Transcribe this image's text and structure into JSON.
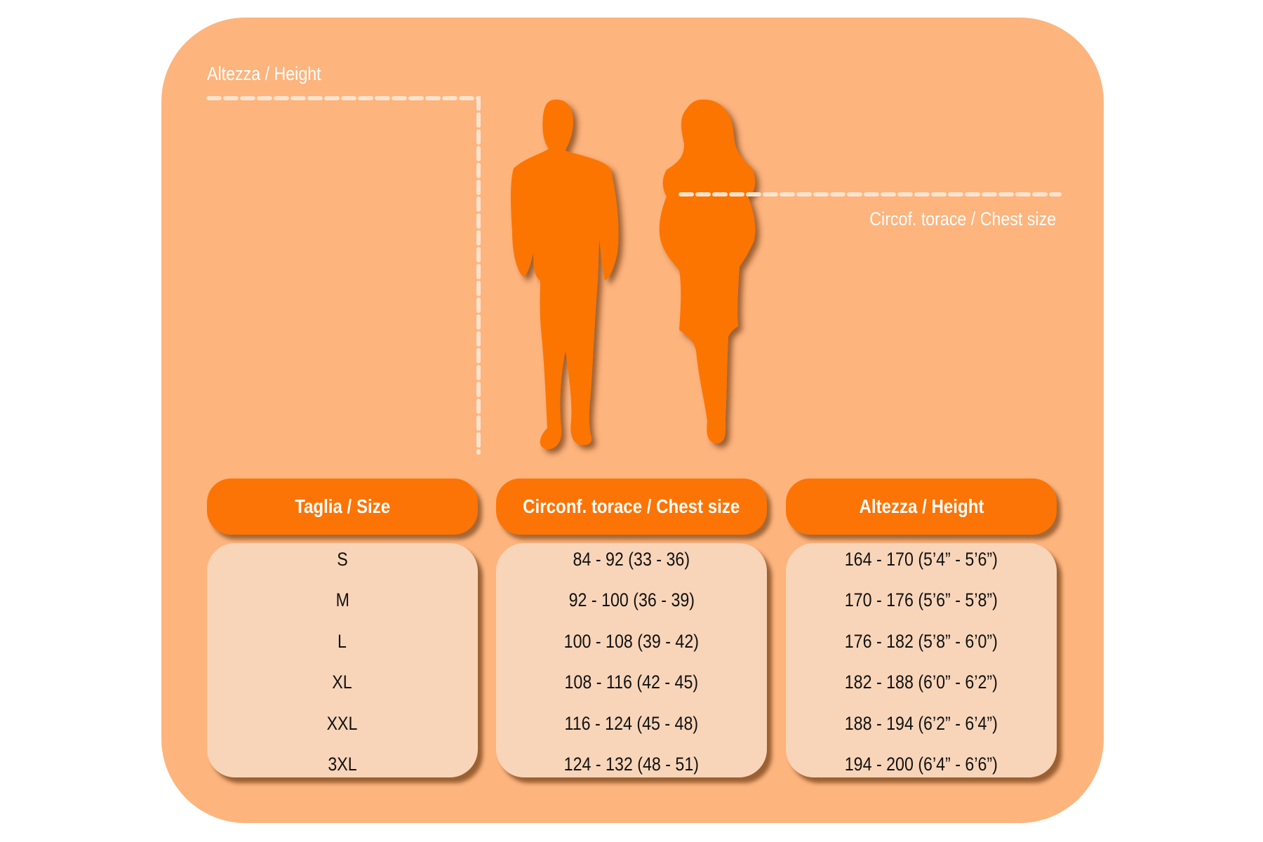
{
  "diagram": {
    "height_label": "Altezza / Height",
    "chest_label": "Circof. torace / Chest size",
    "figures": [
      "man-silhouette",
      "woman-silhouette"
    ],
    "colors": {
      "background": "#fdb47d",
      "accent": "#fb7405",
      "cell": "#f8d5b9",
      "guide": "#fbe3cf"
    }
  },
  "table": {
    "headers": [
      "Taglia / Size",
      "Circonf. torace / Chest size",
      "Altezza / Height"
    ],
    "sizes": [
      "S",
      "M",
      "L",
      "XL",
      "XXL",
      "3XL"
    ],
    "chest": [
      "84 - 92 (33 - 36)",
      "92 - 100 (36 - 39)",
      "100 - 108 (39 - 42)",
      "108 - 116 (42 - 45)",
      "116 - 124 (45 - 48)",
      "124 - 132 (48 - 51)"
    ],
    "height": [
      "164 - 170 (5’4” - 5’6”)",
      "170 - 176 (5’6” - 5’8”)",
      "176 - 182 (5’8” - 6’0”)",
      "182 - 188 (6’0” - 6’2”)",
      "188 - 194 (6’2” - 6’4”)",
      "194 - 200 (6’4” - 6’6”)"
    ]
  }
}
